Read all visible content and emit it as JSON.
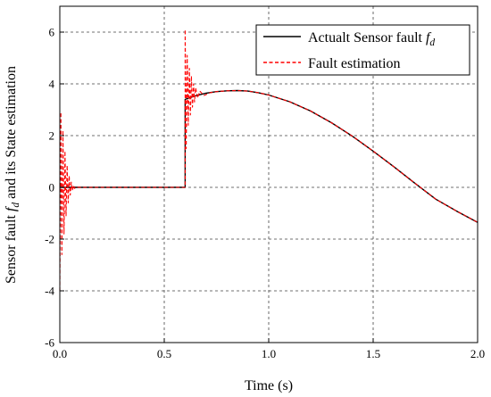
{
  "chart_data": {
    "type": "line",
    "xlabel": "Time (s)",
    "ylabel": "Sensor fault f_d and its State estimation",
    "xlim": [
      0.0,
      2.0
    ],
    "ylim": [
      -6,
      7
    ],
    "x_ticks": [
      "0.0",
      "0.5",
      "1.0",
      "1.5",
      "2.0"
    ],
    "y_ticks": [
      "-6",
      "-4",
      "-2",
      "0",
      "2",
      "4",
      "6"
    ],
    "grid": true,
    "legend_position": "top-right",
    "series": [
      {
        "name": "Actualt Sensor fault f_d",
        "color": "#000000",
        "style": "solid",
        "x": [
          0.0,
          0.6,
          0.6,
          0.65,
          0.7,
          0.75,
          0.8,
          0.85,
          0.9,
          0.95,
          1.0,
          1.1,
          1.2,
          1.3,
          1.4,
          1.5,
          1.6,
          1.7,
          1.8,
          1.9,
          2.0
        ],
        "y": [
          0.0,
          0.0,
          3.4,
          3.54,
          3.64,
          3.7,
          3.73,
          3.74,
          3.72,
          3.66,
          3.57,
          3.31,
          2.95,
          2.5,
          1.98,
          1.4,
          0.79,
          0.16,
          -0.46,
          -0.92,
          -1.35
        ]
      },
      {
        "name": "Fault estimation",
        "color": "#ff0000",
        "style": "dashed",
        "x": [
          0.0,
          0.005,
          0.01,
          0.015,
          0.02,
          0.025,
          0.03,
          0.035,
          0.04,
          0.045,
          0.05,
          0.055,
          0.06,
          0.065,
          0.07,
          0.08,
          0.1,
          0.6,
          0.6,
          0.605,
          0.61,
          0.615,
          0.62,
          0.625,
          0.63,
          0.635,
          0.64,
          0.645,
          0.65,
          0.66,
          0.67,
          0.69,
          0.72,
          0.75,
          0.8,
          0.85,
          0.9,
          0.95,
          1.0,
          1.1,
          1.2,
          1.3,
          1.4,
          1.5,
          1.6,
          1.7,
          1.8,
          1.9,
          2.0
        ],
        "y": [
          -4.0,
          2.9,
          -2.6,
          2.2,
          -1.8,
          1.4,
          -1.1,
          0.85,
          -0.6,
          0.45,
          -0.3,
          0.2,
          -0.12,
          0.08,
          -0.04,
          0.01,
          0.0,
          0.0,
          6.1,
          1.5,
          5.1,
          2.4,
          4.6,
          2.8,
          4.3,
          3.1,
          4.0,
          3.3,
          3.85,
          3.45,
          3.72,
          3.55,
          3.66,
          3.7,
          3.73,
          3.74,
          3.72,
          3.66,
          3.57,
          3.31,
          2.95,
          2.5,
          1.98,
          1.4,
          0.79,
          0.16,
          -0.46,
          -0.92,
          -1.35
        ]
      }
    ]
  }
}
